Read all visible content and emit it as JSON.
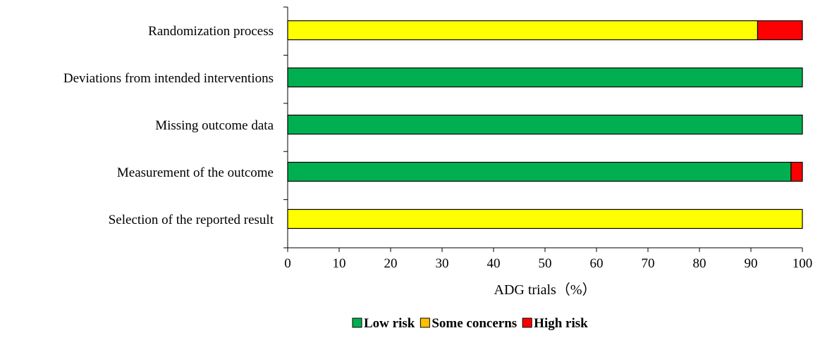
{
  "chart_data": {
    "type": "bar",
    "orientation": "horizontal",
    "stacked": true,
    "categories": [
      "Randomization process",
      "Deviations from intended interventions",
      "Missing outcome data",
      "Measurement of the outcome",
      "Selection of the reported result"
    ],
    "series": [
      {
        "name": "Low risk",
        "color": "#00b050",
        "values": [
          0,
          100,
          100,
          97.8,
          0
        ]
      },
      {
        "name": "Some concerns",
        "color": "#ffff00",
        "values": [
          91.3,
          0,
          0,
          0,
          100
        ]
      },
      {
        "name": "High risk",
        "color": "#ff0000",
        "values": [
          8.7,
          0,
          0,
          2.2,
          0
        ]
      }
    ],
    "xlabel": "ADG trials（%）",
    "xlim": [
      0,
      100
    ],
    "xticks": [
      0,
      10,
      20,
      30,
      40,
      50,
      60,
      70,
      80,
      90,
      100
    ],
    "legend_position": "bottom",
    "grid": false
  }
}
